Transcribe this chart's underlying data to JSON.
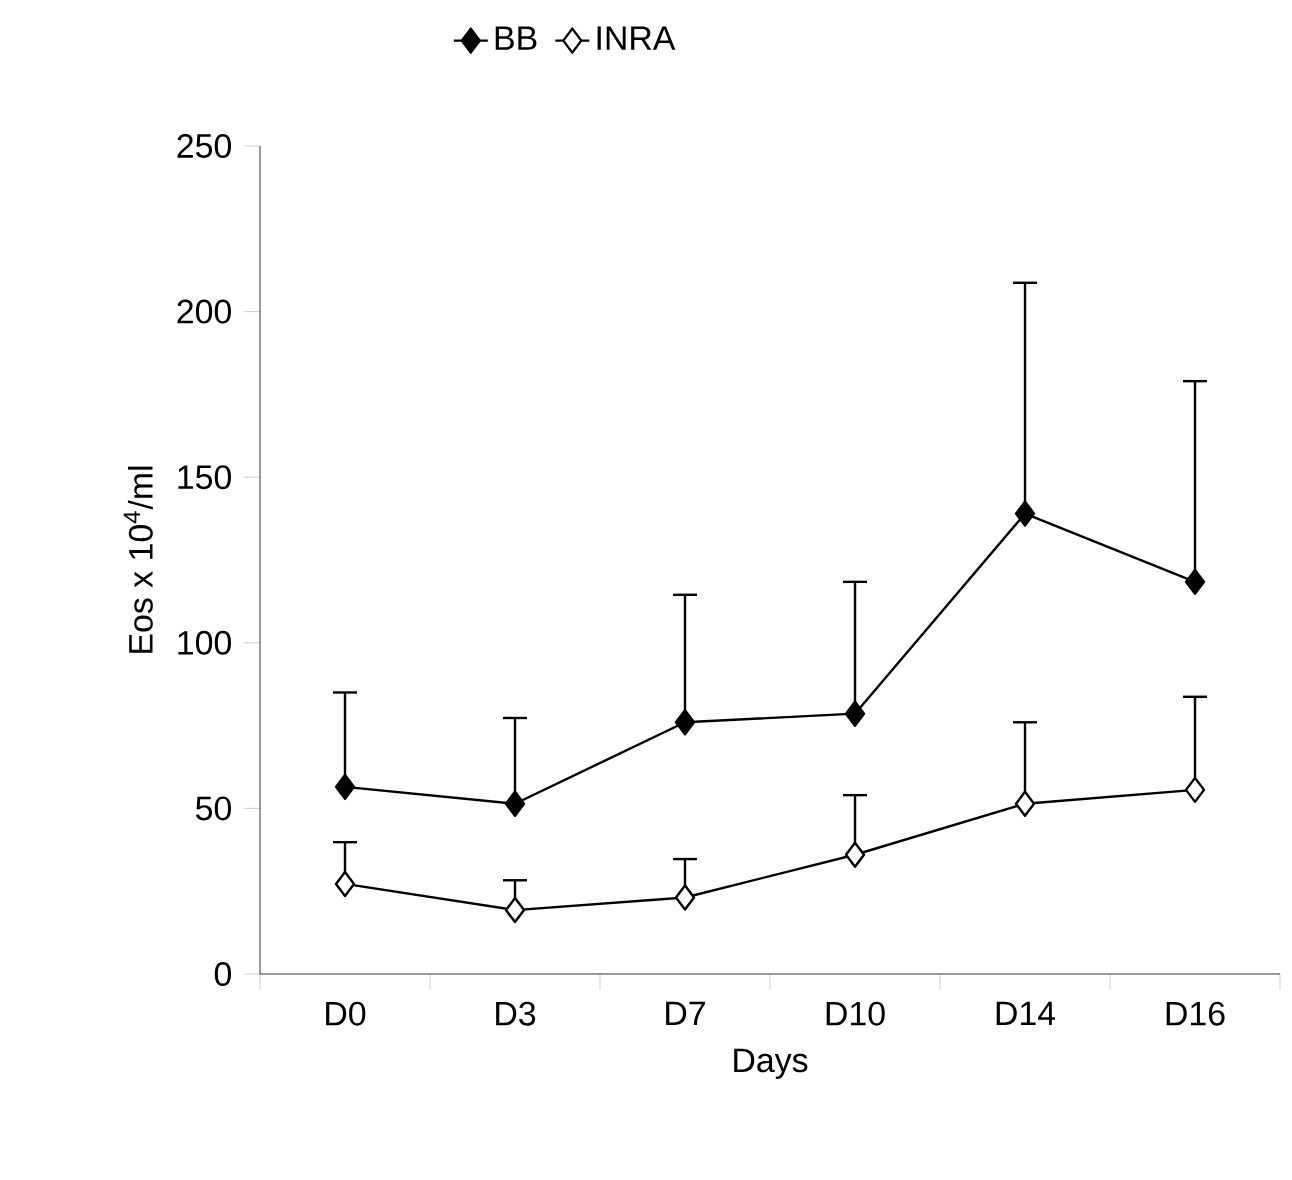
{
  "chart_data": {
    "type": "line",
    "xlabel": "Days",
    "ylabel": "Eos x 10$^{4}$/ml",
    "categories": [
      "D0",
      "D3",
      "D7",
      "D10",
      "D14",
      "D16"
    ],
    "series": [
      {
        "name": "BB",
        "color": "#000000",
        "values": [
          56.5,
          51.4,
          76,
          78.6,
          139,
          118.4
        ],
        "errors": [
          [
            56.5,
            85
          ],
          [
            51.4,
            77.3
          ],
          [
            76,
            114.5
          ],
          [
            78.6,
            118.4
          ],
          [
            139,
            208.7
          ],
          [
            118.4,
            179
          ]
        ]
      },
      {
        "name": "INRA",
        "color": "#000000",
        "values": [
          27.2,
          19.3,
          23.1,
          36,
          51.4,
          55.6
        ],
        "errors": [
          [
            27.2,
            39.8
          ],
          [
            19.3,
            28.3
          ],
          [
            23.1,
            34.7
          ],
          [
            36,
            54
          ],
          [
            51.4,
            76
          ],
          [
            55.6,
            83.7
          ]
        ]
      }
    ],
    "ylim": [
      0,
      250
    ],
    "yticks": [
      0,
      50,
      100,
      150,
      200,
      250
    ],
    "legend": "top",
    "marker": "diamond",
    "line_style": "solid",
    "grid": false
  }
}
